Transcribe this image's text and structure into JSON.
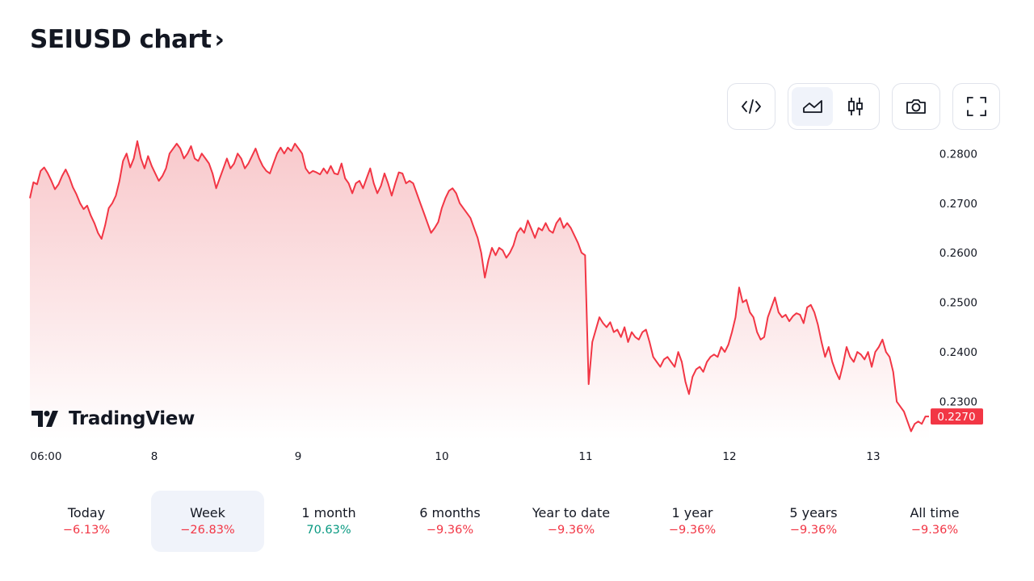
{
  "header": {
    "title": "SEIUSD chart",
    "chevron": "›"
  },
  "toolbar": {
    "buttons": [
      {
        "name": "embed",
        "icon": "code-icon"
      },
      {
        "name": "area-chart",
        "icon": "area-chart-icon",
        "active": true
      },
      {
        "name": "candles",
        "icon": "candles-icon",
        "active": false
      },
      {
        "name": "snapshot",
        "icon": "camera-icon"
      },
      {
        "name": "fullscreen",
        "icon": "fullscreen-icon"
      }
    ]
  },
  "chart_data": {
    "type": "area",
    "symbol": "SEIUSD",
    "x_ticks": [
      "06:00",
      "8",
      "9",
      "10",
      "11",
      "12",
      "13"
    ],
    "y_ticks": [
      "0.2800",
      "0.2700",
      "0.2600",
      "0.2500",
      "0.2400",
      "0.2300"
    ],
    "ylim": [
      0.2223,
      0.2833
    ],
    "last_price_label": "0.2270",
    "series": [
      {
        "values": [
          0.271,
          0.2742,
          0.2738,
          0.2765,
          0.2772,
          0.276,
          0.2745,
          0.2728,
          0.2738,
          0.2755,
          0.2768,
          0.2752,
          0.2732,
          0.2718,
          0.27,
          0.2688,
          0.2695,
          0.2675,
          0.266,
          0.264,
          0.2628,
          0.2655,
          0.269,
          0.27,
          0.2715,
          0.2745,
          0.2785,
          0.28,
          0.2772,
          0.279,
          0.2825,
          0.279,
          0.277,
          0.2795,
          0.2775,
          0.276,
          0.2745,
          0.2755,
          0.277,
          0.28,
          0.281,
          0.282,
          0.281,
          0.279,
          0.28,
          0.2815,
          0.279,
          0.2785,
          0.28,
          0.279,
          0.278,
          0.276,
          0.273,
          0.275,
          0.277,
          0.279,
          0.277,
          0.278,
          0.28,
          0.279,
          0.277,
          0.278,
          0.2795,
          0.281,
          0.279,
          0.2775,
          0.2765,
          0.276,
          0.278,
          0.28,
          0.2812,
          0.28,
          0.2812,
          0.2805,
          0.282,
          0.281,
          0.28,
          0.277,
          0.276,
          0.2765,
          0.2762,
          0.2758,
          0.277,
          0.276,
          0.2775,
          0.276,
          0.2758,
          0.278,
          0.275,
          0.274,
          0.272,
          0.274,
          0.2745,
          0.273,
          0.275,
          0.277,
          0.274,
          0.272,
          0.2735,
          0.276,
          0.274,
          0.2715,
          0.274,
          0.2762,
          0.276,
          0.274,
          0.2745,
          0.274,
          0.272,
          0.27,
          0.268,
          0.266,
          0.264,
          0.265,
          0.2662,
          0.269,
          0.271,
          0.2725,
          0.273,
          0.272,
          0.27,
          0.269,
          0.268,
          0.267,
          0.265,
          0.263,
          0.26,
          0.255,
          0.2585,
          0.261,
          0.2595,
          0.261,
          0.2605,
          0.259,
          0.26,
          0.2615,
          0.264,
          0.265,
          0.264,
          0.2665,
          0.2648,
          0.263,
          0.265,
          0.2645,
          0.266,
          0.2645,
          0.264,
          0.266,
          0.267,
          0.265,
          0.266,
          0.265,
          0.2635,
          0.262,
          0.26,
          0.2595,
          0.2335,
          0.242,
          0.2445,
          0.247,
          0.2458,
          0.245,
          0.246,
          0.244,
          0.2445,
          0.243,
          0.245,
          0.242,
          0.244,
          0.243,
          0.2425,
          0.244,
          0.2445,
          0.242,
          0.239,
          0.238,
          0.237,
          0.2385,
          0.239,
          0.238,
          0.237,
          0.24,
          0.238,
          0.234,
          0.2315,
          0.235,
          0.2365,
          0.237,
          0.236,
          0.238,
          0.239,
          0.2395,
          0.239,
          0.241,
          0.24,
          0.2415,
          0.244,
          0.247,
          0.253,
          0.25,
          0.2505,
          0.248,
          0.247,
          0.244,
          0.2425,
          0.243,
          0.247,
          0.249,
          0.251,
          0.248,
          0.247,
          0.2475,
          0.2462,
          0.2472,
          0.2478,
          0.2475,
          0.2458,
          0.249,
          0.2495,
          0.248,
          0.2455,
          0.242,
          0.239,
          0.241,
          0.238,
          0.236,
          0.2345,
          0.2375,
          0.241,
          0.239,
          0.238,
          0.24,
          0.2395,
          0.2385,
          0.24,
          0.237,
          0.24,
          0.241,
          0.2425,
          0.24,
          0.239,
          0.236,
          0.23,
          0.229,
          0.228,
          0.226,
          0.224,
          0.2255,
          0.226,
          0.2255,
          0.227,
          0.227
        ]
      }
    ],
    "line_color": "#f23645",
    "fill_color_top": "#f8c6c9",
    "fill_color_bottom": "#ffffff",
    "watermark": "TradingView"
  },
  "periods": [
    {
      "label": "Today",
      "change": "−6.13%",
      "positive": false,
      "active": false
    },
    {
      "label": "Week",
      "change": "−26.83%",
      "positive": false,
      "active": true
    },
    {
      "label": "1 month",
      "change": "70.63%",
      "positive": true,
      "active": false
    },
    {
      "label": "6 months",
      "change": "−9.36%",
      "positive": false,
      "active": false
    },
    {
      "label": "Year to date",
      "change": "−9.36%",
      "positive": false,
      "active": false
    },
    {
      "label": "1 year",
      "change": "−9.36%",
      "positive": false,
      "active": false
    },
    {
      "label": "5 years",
      "change": "−9.36%",
      "positive": false,
      "active": false
    },
    {
      "label": "All time",
      "change": "−9.36%",
      "positive": false,
      "active": false
    }
  ],
  "colors": {
    "negative": "#f23645",
    "positive": "#089981",
    "text": "#131722",
    "axis_text": "#131722"
  }
}
